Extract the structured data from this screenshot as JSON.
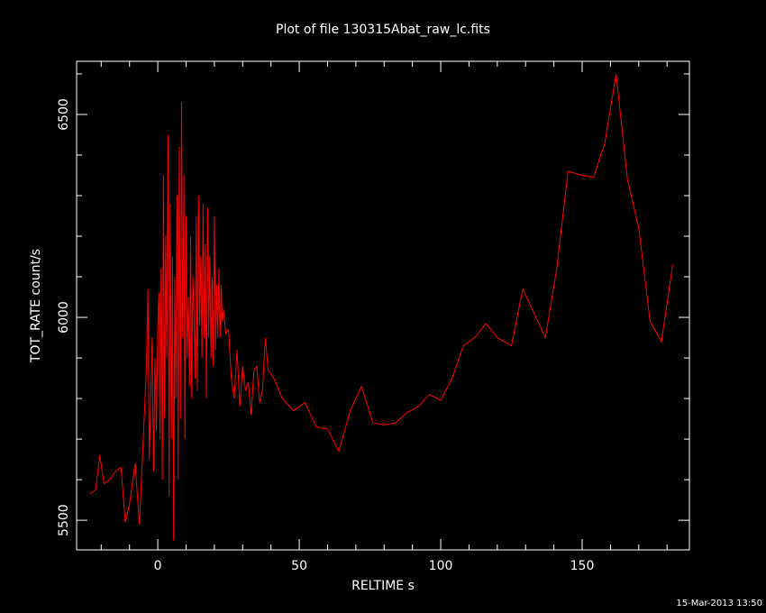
{
  "chart_data": {
    "type": "line",
    "title": "Plot of file 130315Abat_raw_lc.fits",
    "x_label": "RELTIME  s",
    "y_label": "TOT_RATE  count/s",
    "footer": "15-Mar-2013 13:50",
    "color": "#ff0000",
    "xlim": [
      -28.7,
      187.9
    ],
    "ylim": [
      5427,
      6631
    ],
    "xticks": [
      0,
      50,
      100,
      150
    ],
    "yticks": [
      5500,
      6000,
      6500
    ],
    "xminorticks": [
      -20,
      -10,
      10,
      20,
      30,
      40,
      60,
      70,
      80,
      90,
      110,
      120,
      130,
      140,
      160,
      170,
      180
    ],
    "yminorticks": [
      5600,
      5700,
      5800,
      5900,
      6100,
      6200,
      6300,
      6400,
      6600
    ],
    "x": [
      -24,
      -22,
      -20.5,
      -19,
      -17,
      -15,
      -13,
      -11.5,
      -10,
      -8,
      -6.5,
      -5,
      -4,
      -3.5,
      -3,
      -2,
      -1.5,
      -1,
      -0.5,
      0,
      0.4,
      0.8,
      1.2,
      1.6,
      2.0,
      2.4,
      2.8,
      3.2,
      3.6,
      4.0,
      4.4,
      4.8,
      5.2,
      5.6,
      6.0,
      6.4,
      6.8,
      7.2,
      7.6,
      8.0,
      8.4,
      8.8,
      9.2,
      9.6,
      10.0,
      10.4,
      10.8,
      11.2,
      11.6,
      12.0,
      12.4,
      12.8,
      13.2,
      13.6,
      14.0,
      14.4,
      14.8,
      15.2,
      15.6,
      16.0,
      16.4,
      16.8,
      17.2,
      17.6,
      18.0,
      18.4,
      18.8,
      19.2,
      19.6,
      20.0,
      20.4,
      20.8,
      21.2,
      21.6,
      22.0,
      22.4,
      22.8,
      23.2,
      24,
      25,
      26,
      27,
      28,
      29,
      30,
      31,
      32,
      33,
      34,
      35,
      36,
      37,
      38,
      39,
      41,
      44,
      48,
      52,
      56,
      60,
      64,
      68,
      72,
      76,
      80,
      84,
      88,
      92,
      96,
      100,
      104,
      108,
      112,
      116,
      120,
      125,
      129,
      133,
      137,
      141,
      145,
      150,
      154,
      158,
      162,
      166,
      170,
      174,
      178,
      182
    ],
    "values": [
      5565,
      5575,
      5660,
      5590,
      5600,
      5620,
      5630,
      5495,
      5540,
      5640,
      5490,
      5720,
      5880,
      6070,
      5650,
      5950,
      5620,
      5900,
      5720,
      5980,
      6060,
      5700,
      6120,
      5600,
      6350,
      5750,
      6200,
      5900,
      6450,
      5560,
      6280,
      5700,
      6150,
      5450,
      6100,
      5800,
      6300,
      5600,
      6420,
      5750,
      6530,
      5950,
      6350,
      5700,
      6250,
      5900,
      6050,
      5830,
      6200,
      5800,
      6100,
      6000,
      5850,
      6250,
      5820,
      6300,
      5980,
      6150,
      5900,
      6280,
      5950,
      6180,
      5800,
      6270,
      5950,
      6150,
      5900,
      6100,
      5880,
      6250,
      5920,
      6080,
      5950,
      6120,
      5950,
      6080,
      5990,
      6020,
      5960,
      5970,
      5850,
      5800,
      5920,
      5780,
      5880,
      5820,
      5840,
      5760,
      5870,
      5880,
      5790,
      5820,
      5950,
      5870,
      5850,
      5800,
      5770,
      5790,
      5730,
      5725,
      5670,
      5770,
      5830,
      5740,
      5735,
      5740,
      5765,
      5780,
      5810,
      5795,
      5850,
      5930,
      5950,
      5985,
      5950,
      5930,
      6070,
      6010,
      5950,
      6120,
      6360,
      6350,
      6345,
      6430,
      6600,
      6340,
      6220,
      5990,
      5940,
      6130
    ]
  }
}
